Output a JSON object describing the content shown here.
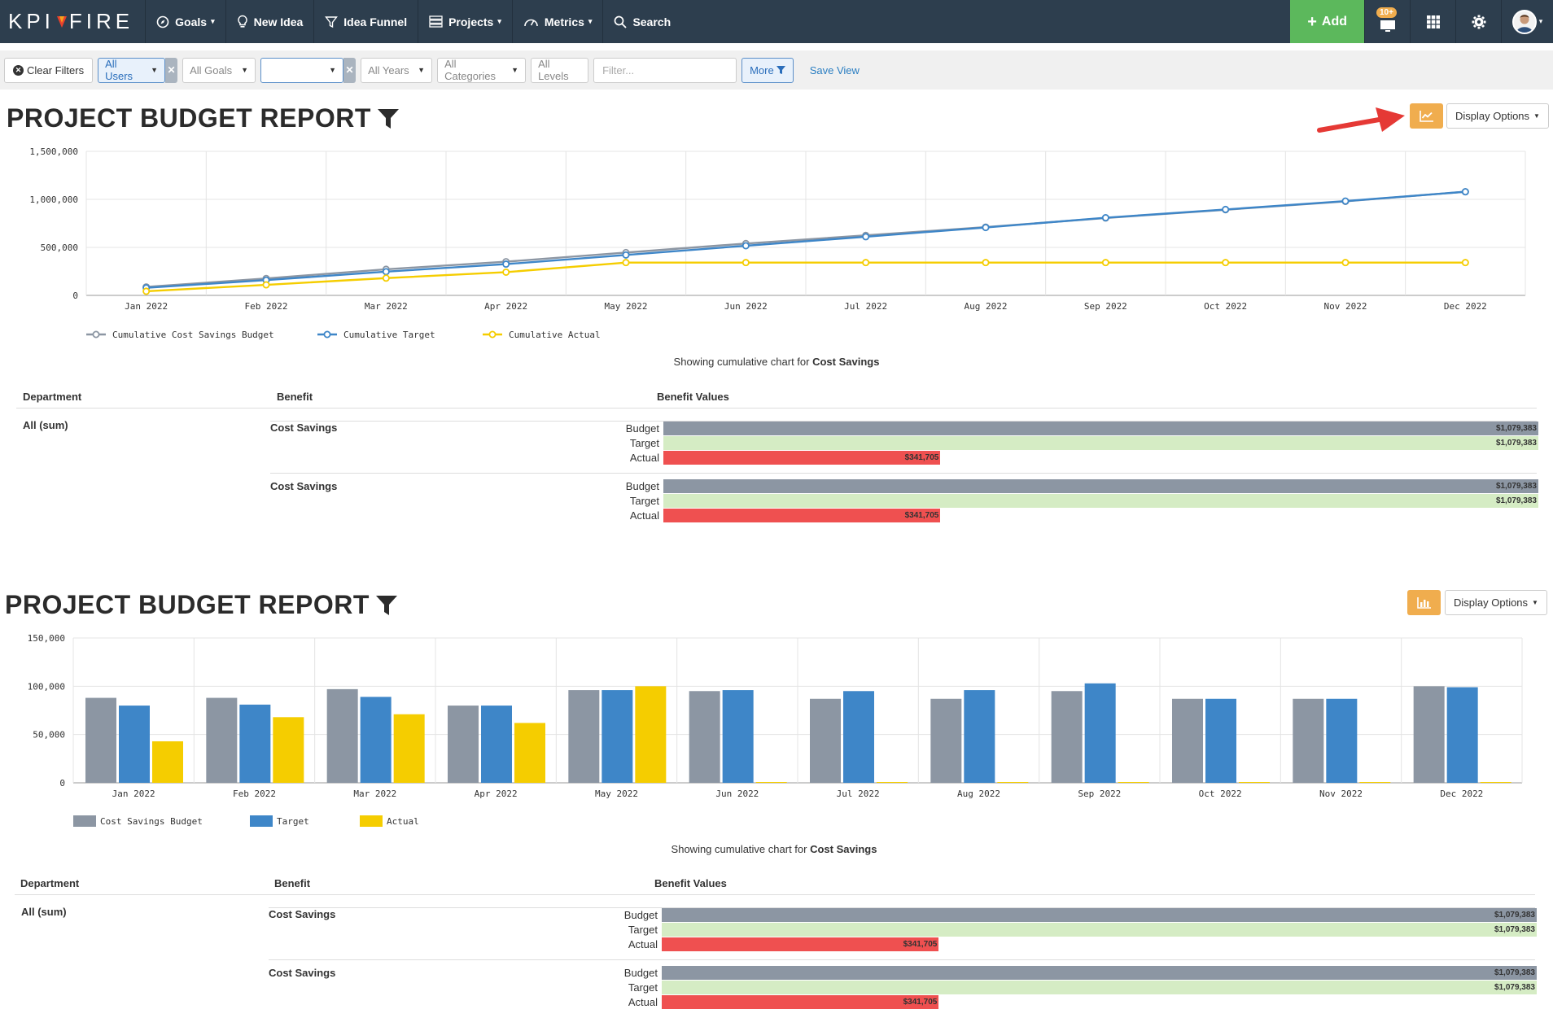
{
  "nav": {
    "logo_left": "KPI",
    "logo_right": "FIRE",
    "items": [
      {
        "label": "Goals",
        "icon": "compass-icon",
        "caret": true
      },
      {
        "label": "New Idea",
        "icon": "lightbulb-icon",
        "caret": false
      },
      {
        "label": "Idea Funnel",
        "icon": "funnel-icon",
        "caret": false
      },
      {
        "label": "Projects",
        "icon": "projects-icon",
        "caret": true
      },
      {
        "label": "Metrics",
        "icon": "gauge-icon",
        "caret": true
      },
      {
        "label": "Search",
        "icon": "search-icon",
        "caret": false
      }
    ],
    "add_label": "Add",
    "notif_count": "10+"
  },
  "filters": {
    "clear_label": "Clear Filters",
    "users": "All Users",
    "goals": "All Goals",
    "unnamed": "",
    "years": "All Years",
    "categories": "All Categories",
    "levels": "All Levels",
    "filter_placeholder": "Filter...",
    "more_label": "More",
    "save_view": "Save View"
  },
  "reports": [
    {
      "title": "PROJECT BUDGET REPORT",
      "display_options": "Display Options",
      "showing_prefix": "Showing cumulative chart for",
      "showing_subject": "Cost Savings",
      "table": {
        "headers": [
          "Department",
          "Benefit",
          "Benefit Values"
        ],
        "department": "All (sum)",
        "rows": [
          {
            "benefit": "Cost Savings",
            "labels": [
              "Budget",
              "Target",
              "Actual"
            ],
            "values": [
              "$1,079,383",
              "$1,079,383",
              "$341,705"
            ],
            "fractions": [
              1,
              1,
              0.3166
            ]
          },
          {
            "benefit": "Cost Savings",
            "labels": [
              "Budget",
              "Target",
              "Actual"
            ],
            "values": [
              "$1,079,383",
              "$1,079,383",
              "$341,705"
            ],
            "fractions": [
              1,
              1,
              0.3166
            ]
          }
        ]
      }
    },
    {
      "title": "PROJECT BUDGET REPORT",
      "display_options": "Display Options",
      "showing_prefix": "Showing cumulative chart for",
      "showing_subject": "Cost Savings",
      "table": {
        "headers": [
          "Department",
          "Benefit",
          "Benefit Values"
        ],
        "department": "All (sum)",
        "rows": [
          {
            "benefit": "Cost Savings",
            "labels": [
              "Budget",
              "Target",
              "Actual"
            ],
            "values": [
              "$1,079,383",
              "$1,079,383",
              "$341,705"
            ],
            "fractions": [
              1,
              1,
              0.3166
            ]
          },
          {
            "benefit": "Cost Savings",
            "labels": [
              "Budget",
              "Target",
              "Actual"
            ],
            "values": [
              "$1,079,383",
              "$1,079,383",
              "$341,705"
            ],
            "fractions": [
              1,
              1,
              0.3166
            ]
          }
        ]
      }
    }
  ],
  "chart_data": [
    {
      "type": "line",
      "categories": [
        "Jan 2022",
        "Feb 2022",
        "Mar 2022",
        "Apr 2022",
        "May 2022",
        "Jun 2022",
        "Jul 2022",
        "Aug 2022",
        "Sep 2022",
        "Oct 2022",
        "Nov 2022",
        "Dec 2022"
      ],
      "ylim": [
        0,
        1500000
      ],
      "yticks": [
        0,
        500000,
        1000000,
        1500000
      ],
      "ytick_labels": [
        "0",
        "500,000",
        "1,000,000",
        "1,500,000"
      ],
      "grid": true,
      "legend_position": "bottom-left",
      "series": [
        {
          "name": "Cumulative Cost Savings Budget",
          "color": "#8c96a3",
          "values": [
            88000,
            176000,
            272000,
            351000,
            446000,
            540000,
            625000,
            711000,
            806000,
            892000,
            979000,
            1079383
          ]
        },
        {
          "name": "Cumulative Target",
          "color": "#3e86c8",
          "values": [
            79000,
            159000,
            247000,
            326000,
            421000,
            517000,
            611000,
            707000,
            809000,
            895000,
            982000,
            1079383
          ]
        },
        {
          "name": "Cumulative Actual",
          "color": "#f5cd00",
          "values": [
            43000,
            110000,
            180000,
            242000,
            341705,
            341705,
            341705,
            341705,
            341705,
            341705,
            341705,
            341705
          ]
        }
      ]
    },
    {
      "type": "bar",
      "categories": [
        "Jan 2022",
        "Feb 2022",
        "Mar 2022",
        "Apr 2022",
        "May 2022",
        "Jun 2022",
        "Jul 2022",
        "Aug 2022",
        "Sep 2022",
        "Oct 2022",
        "Nov 2022",
        "Dec 2022"
      ],
      "ylim": [
        0,
        150000
      ],
      "yticks": [
        0,
        50000,
        100000,
        150000
      ],
      "ytick_labels": [
        "0",
        "50,000",
        "100,000",
        "150,000"
      ],
      "grid": true,
      "legend_position": "bottom-left",
      "series": [
        {
          "name": "Cost Savings Budget",
          "color": "#8c96a3",
          "values": [
            88000,
            88000,
            97000,
            80000,
            96000,
            95000,
            87000,
            87000,
            95000,
            87000,
            87000,
            100000
          ]
        },
        {
          "name": "Target",
          "color": "#3e86c8",
          "values": [
            80000,
            81000,
            89000,
            80000,
            96000,
            96000,
            95000,
            96000,
            103000,
            87000,
            87000,
            99000
          ]
        },
        {
          "name": "Actual",
          "color": "#f5cd00",
          "values": [
            43000,
            68000,
            71000,
            62000,
            100000,
            0,
            0,
            0,
            0,
            0,
            0,
            0
          ]
        }
      ]
    }
  ]
}
